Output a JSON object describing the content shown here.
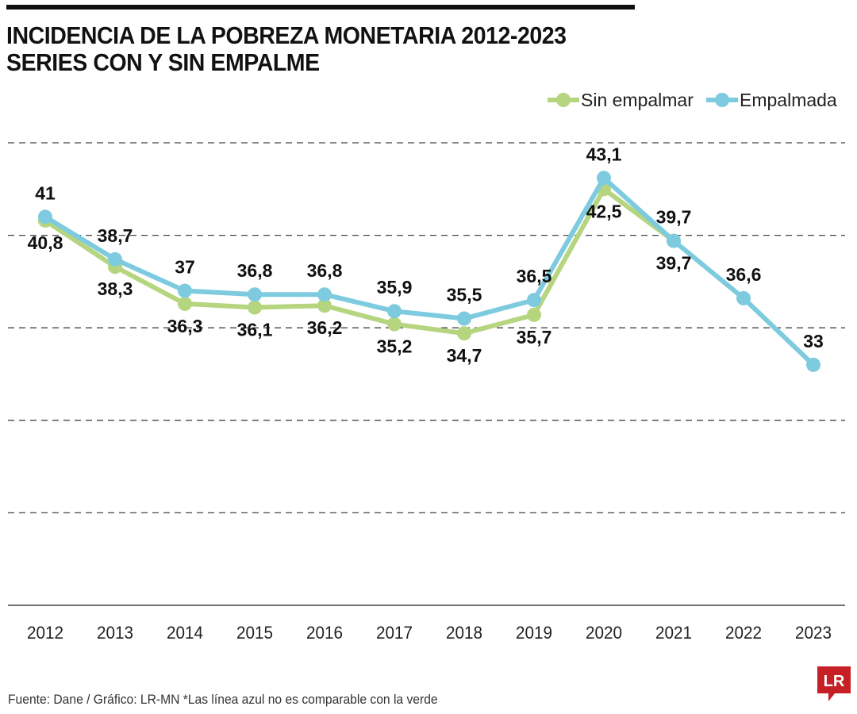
{
  "title_line1": "INCIDENCIA DE LA POBREZA MONETARIA 2012-2023",
  "title_line2": "SERIES CON Y SIN EMPALME",
  "footer": "Fuente: Dane / Gráfico: LR-MN   *Las línea azul no es comparable con la verde",
  "logo_text": "LR",
  "colors": {
    "green": "#b5d57f",
    "blue": "#7ecbe0",
    "logo": "#c62026"
  },
  "chart_data": {
    "type": "line",
    "categories": [
      "2012",
      "2013",
      "2014",
      "2015",
      "2016",
      "2017",
      "2018",
      "2019",
      "2020",
      "2021",
      "2022",
      "2023"
    ],
    "series": [
      {
        "name": "Sin empalmar",
        "color": "#b5d57f",
        "values": [
          40.8,
          38.3,
          36.3,
          36.1,
          36.2,
          35.2,
          34.7,
          35.7,
          42.5,
          39.7,
          null,
          null
        ],
        "labels": [
          "40,8",
          "38,3",
          "36,3",
          "36,1",
          "36,2",
          "35,2",
          "34,7",
          "35,7",
          "42,5",
          "39,7",
          "",
          ""
        ]
      },
      {
        "name": "Empalmada",
        "color": "#7ecbe0",
        "values": [
          41,
          38.7,
          37,
          36.8,
          36.8,
          35.9,
          35.5,
          36.5,
          43.1,
          39.7,
          36.6,
          33
        ],
        "labels": [
          "41",
          "38,7",
          "37",
          "36,8",
          "36,8",
          "35,9",
          "35,5",
          "36,5",
          "43,1",
          "39,7",
          "36,6",
          "33"
        ]
      }
    ],
    "ylim": [
      20,
      45
    ],
    "gridlines": [
      25,
      30,
      35,
      40,
      45
    ],
    "grid": "dashed horizontal",
    "legend": "top-right",
    "y_tick_labels": false
  }
}
